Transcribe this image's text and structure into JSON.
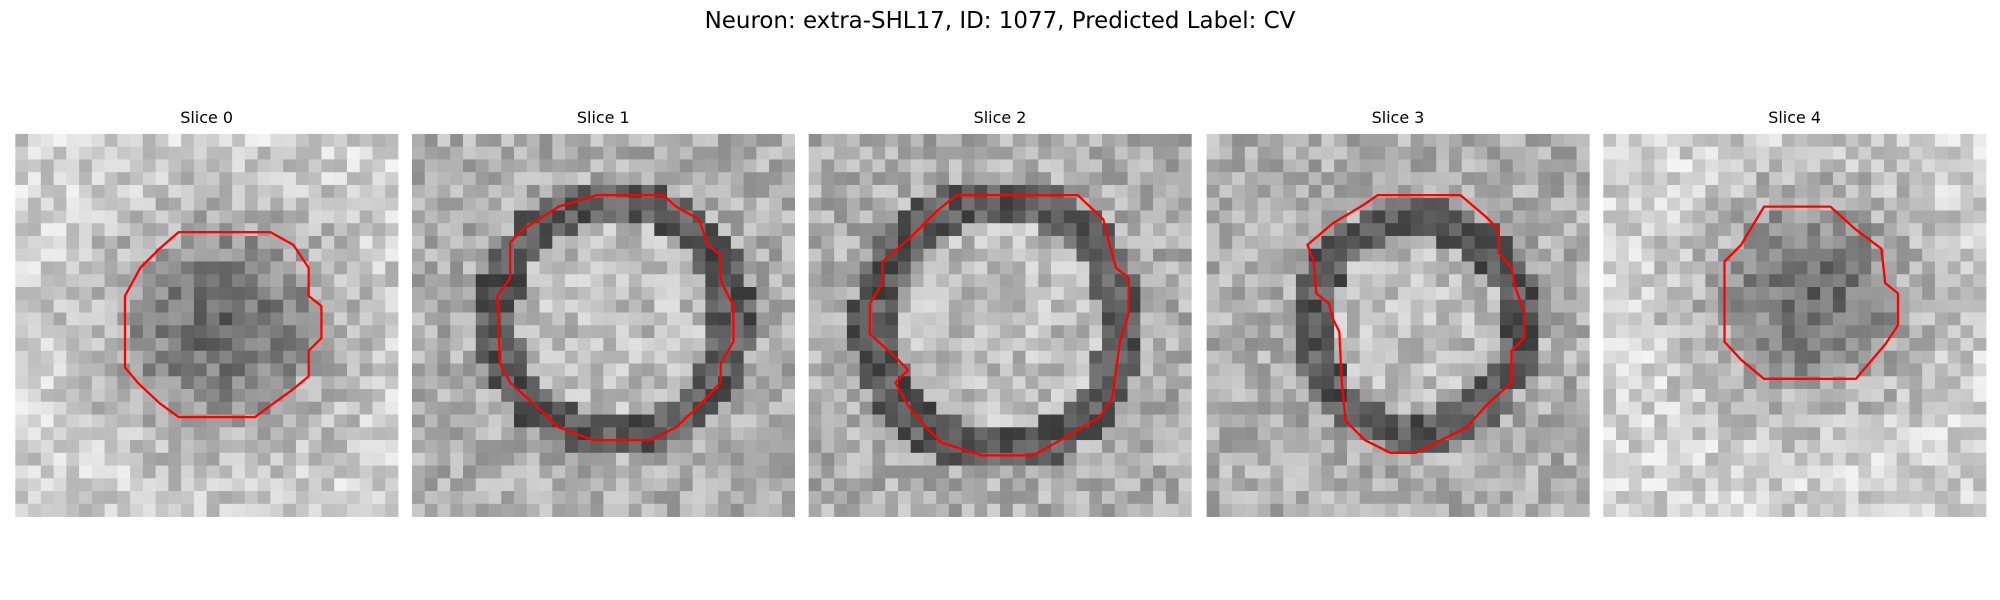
{
  "title": "Neuron: extra-SHL17, ID: 1077, Predicted Label: CV",
  "panels": [
    {
      "title": "Slice 0"
    },
    {
      "title": "Slice 1"
    },
    {
      "title": "Slice 2"
    },
    {
      "title": "Slice 3"
    },
    {
      "title": "Slice 4"
    }
  ]
}
